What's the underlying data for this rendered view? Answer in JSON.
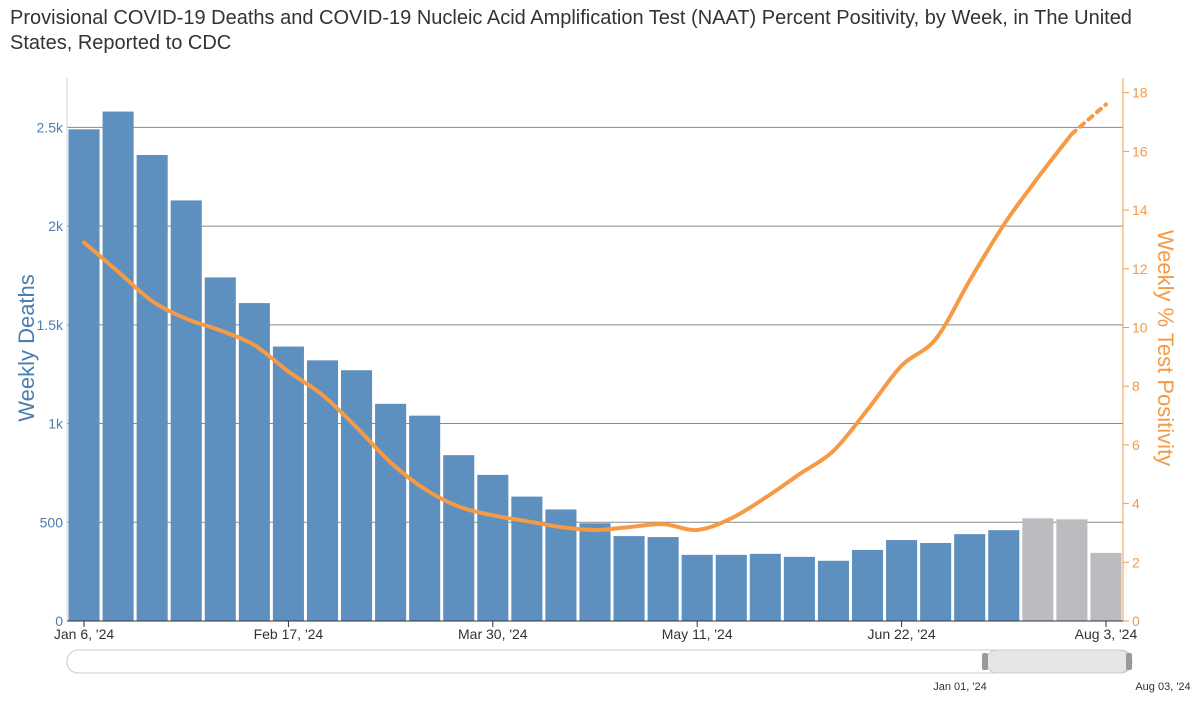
{
  "title": "Provisional COVID-19 Deaths and COVID-19 Nucleic Acid Amplification Test (NAAT) Percent Positivity, by Week, in The United States, Reported to CDC",
  "colors": {
    "deaths_bar": "#5d8fbf",
    "deaths_bar_provisional": "#bbbcc0",
    "positivity_line": "#f59a45",
    "left_axis": "#4b7fb0",
    "right_axis": "#f59a45",
    "grid": "#888888"
  },
  "chart_data": {
    "type": "bar",
    "categories": [
      "Jan 6, '24",
      "Jan 13, '24",
      "Jan 20, '24",
      "Jan 27, '24",
      "Feb 3, '24",
      "Feb 10, '24",
      "Feb 17, '24",
      "Feb 24, '24",
      "Mar 2, '24",
      "Mar 9, '24",
      "Mar 16, '24",
      "Mar 23, '24",
      "Mar 30, '24",
      "Apr 6, '24",
      "Apr 13, '24",
      "Apr 20, '24",
      "Apr 27, '24",
      "May 4, '24",
      "May 11, '24",
      "May 18, '24",
      "May 25, '24",
      "Jun 1, '24",
      "Jun 8, '24",
      "Jun 15, '24",
      "Jun 22, '24",
      "Jun 29, '24",
      "Jul 6, '24",
      "Jul 13, '24",
      "Jul 20, '24",
      "Jul 27, '24",
      "Aug 3, '24"
    ],
    "x_tick_labels": [
      "Jan 6, '24",
      "Feb 17, '24",
      "Mar 30, '24",
      "May 11, '24",
      "Jun 22, '24",
      "Aug 3, '24"
    ],
    "x_tick_indices": [
      0,
      6,
      12,
      18,
      24,
      30
    ],
    "series": [
      {
        "name": "Weekly Deaths",
        "axis": "left",
        "values": [
          2490,
          2580,
          2360,
          2130,
          1740,
          1610,
          1390,
          1320,
          1270,
          1100,
          1040,
          840,
          740,
          630,
          565,
          495,
          430,
          425,
          335,
          335,
          340,
          325,
          305,
          360,
          410,
          395,
          440,
          460,
          520,
          515,
          345
        ],
        "provisional_from_index": 28
      },
      {
        "name": "Weekly % Test Positivity",
        "axis": "right",
        "type": "line",
        "values": [
          12.9,
          11.9,
          10.9,
          10.3,
          9.9,
          9.4,
          8.5,
          7.7,
          6.6,
          5.4,
          4.5,
          3.9,
          3.6,
          3.4,
          3.2,
          3.1,
          3.2,
          3.3,
          3.1,
          3.5,
          4.2,
          5.0,
          5.8,
          7.2,
          8.7,
          9.6,
          11.6,
          13.5,
          15.1,
          16.6,
          17.6
        ],
        "projected_from_index": 29
      }
    ],
    "yleft": {
      "label": "Weekly Deaths",
      "range": [
        0,
        2750
      ],
      "ticks": [
        0,
        500,
        1000,
        1500,
        2000,
        2500
      ],
      "tick_labels": [
        "0",
        "500",
        "1k",
        "1.5k",
        "2k",
        "2.5k"
      ]
    },
    "yright": {
      "label": "Weekly % Test Positivity",
      "range": [
        0,
        18.5
      ],
      "ticks": [
        0,
        2,
        4,
        6,
        8,
        10,
        12,
        14,
        16,
        18
      ],
      "tick_labels": [
        "0",
        "2",
        "4",
        "6",
        "8",
        "10",
        "12",
        "14",
        "16",
        "18"
      ]
    },
    "grid": true
  },
  "navigator": {
    "start_label": "Jan 01, '24",
    "end_label": "Aug 03, '24"
  }
}
